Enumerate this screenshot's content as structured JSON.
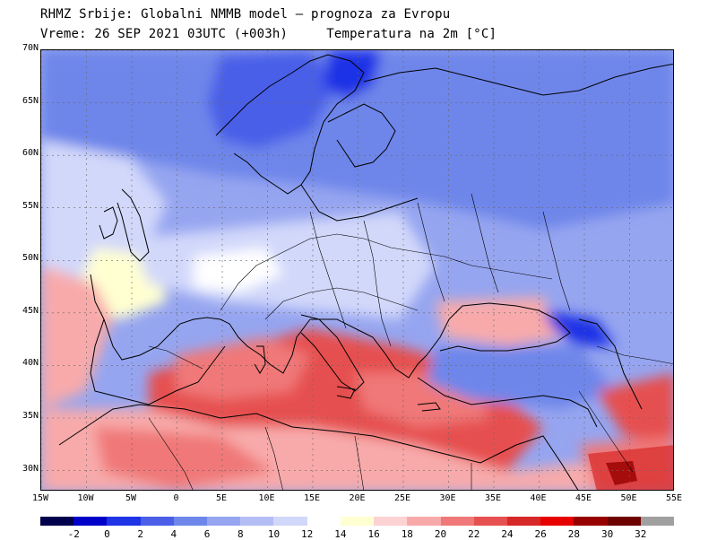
{
  "header": {
    "line1": "RHMZ Srbije: Globalni NMMB model — prognoza za Evropu",
    "line2": "Vreme: 26 SEP 2021 03UTC (+003h)     Temperatura na 2m [°C]"
  },
  "map": {
    "lon_range": [
      -15,
      55
    ],
    "lat_range": [
      28,
      70
    ],
    "lat_ticks": [
      "30N",
      "35N",
      "40N",
      "45N",
      "50N",
      "55N",
      "60N",
      "65N",
      "70N"
    ],
    "lon_ticks": [
      "15W",
      "10W",
      "5W",
      "0",
      "5E",
      "10E",
      "15E",
      "20E",
      "25E",
      "30E",
      "35E",
      "40E",
      "45E",
      "50E",
      "55E"
    ]
  },
  "colorbar": {
    "colors": [
      "#00004d",
      "#0000c8",
      "#1e32e6",
      "#4a5ee8",
      "#6e86ea",
      "#96a5f0",
      "#b4bef5",
      "#d2d8fa",
      "#ffffff",
      "#ffffd2",
      "#fcd2d2",
      "#f8aaaa",
      "#f07878",
      "#e65050",
      "#d72828",
      "#e60000",
      "#960000",
      "#6e0000",
      "#a0a0a0"
    ],
    "labels": [
      "-2",
      "0",
      "2",
      "4",
      "6",
      "8",
      "10",
      "12",
      "14",
      "16",
      "18",
      "20",
      "22",
      "24",
      "26",
      "28",
      "30",
      "32"
    ]
  }
}
